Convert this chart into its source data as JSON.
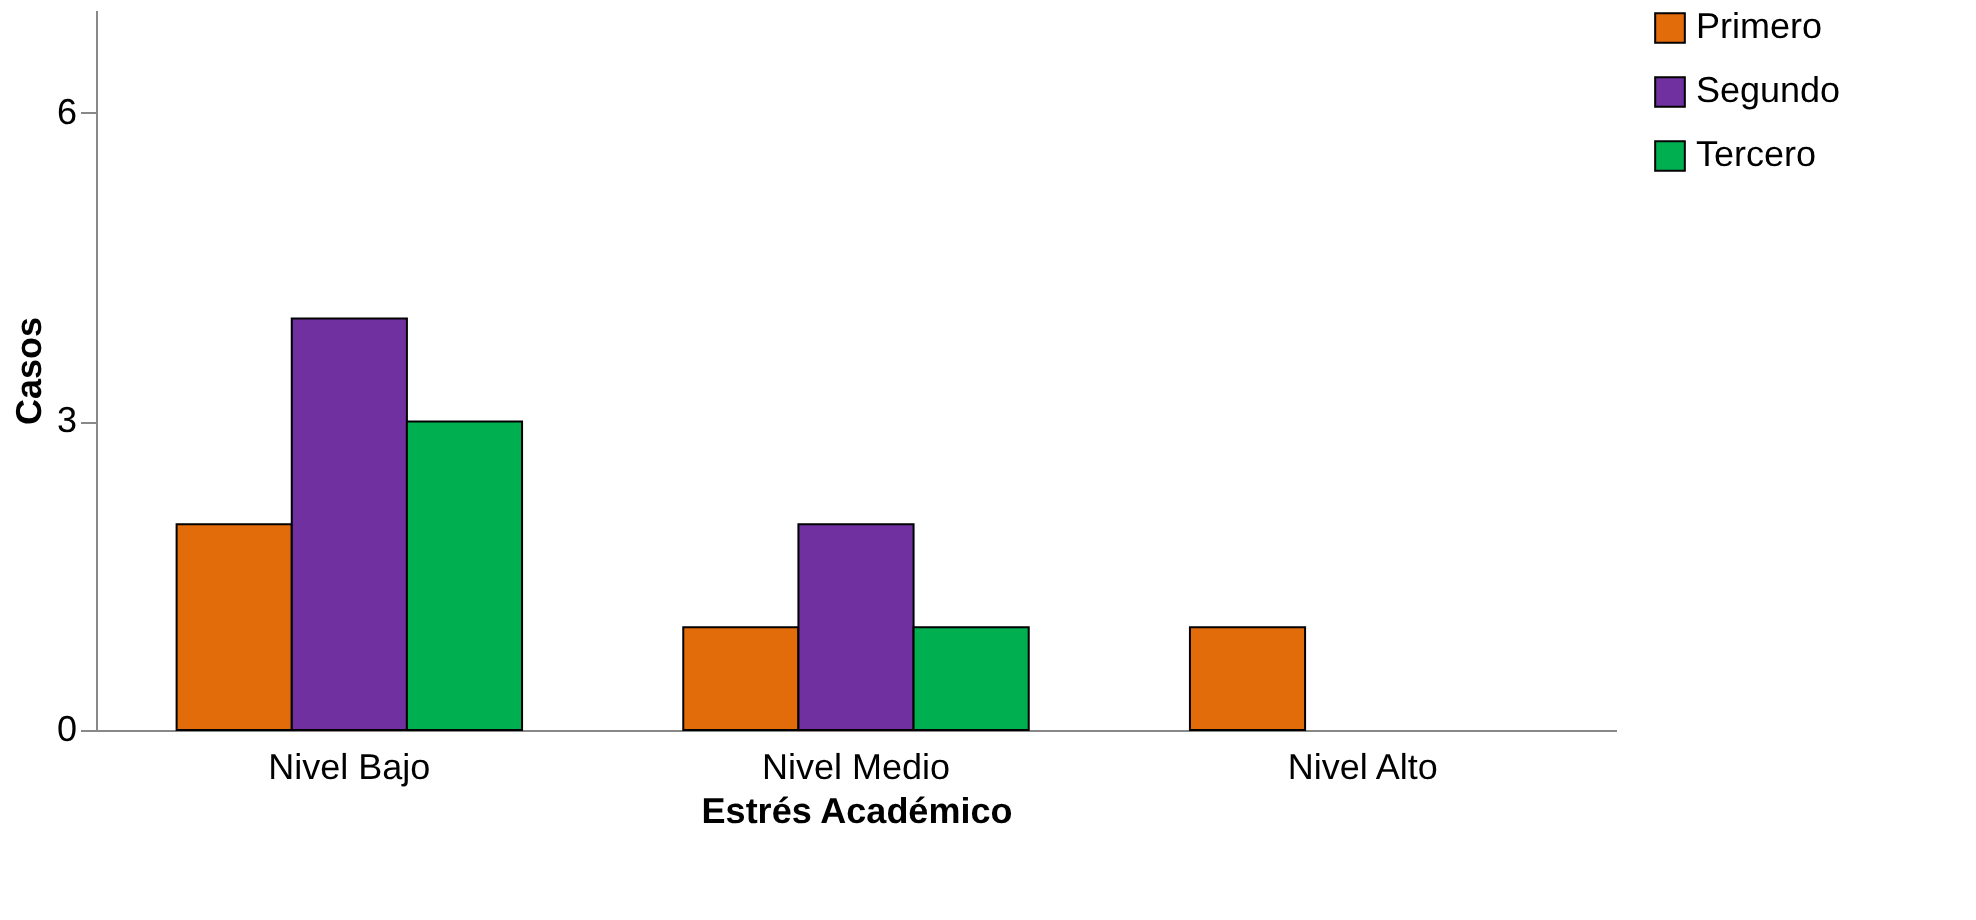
{
  "chart_data": {
    "type": "bar",
    "xlabel": "Estrés Académico",
    "ylabel": "Casos",
    "categories": [
      "Nivel Bajo",
      "Nivel Medio",
      "Nivel Alto"
    ],
    "series": [
      {
        "name": "Primero",
        "color": "#e36c0a",
        "values": [
          2,
          1,
          1
        ]
      },
      {
        "name": "Segundo",
        "color": "#7030a0",
        "values": [
          4,
          2,
          null
        ]
      },
      {
        "name": "Tercero",
        "color": "#00b050",
        "values": [
          3,
          1,
          null
        ]
      }
    ],
    "ylim": [
      0,
      7
    ],
    "yticks": [
      0,
      3,
      6
    ],
    "grid": false,
    "legend": "right"
  }
}
